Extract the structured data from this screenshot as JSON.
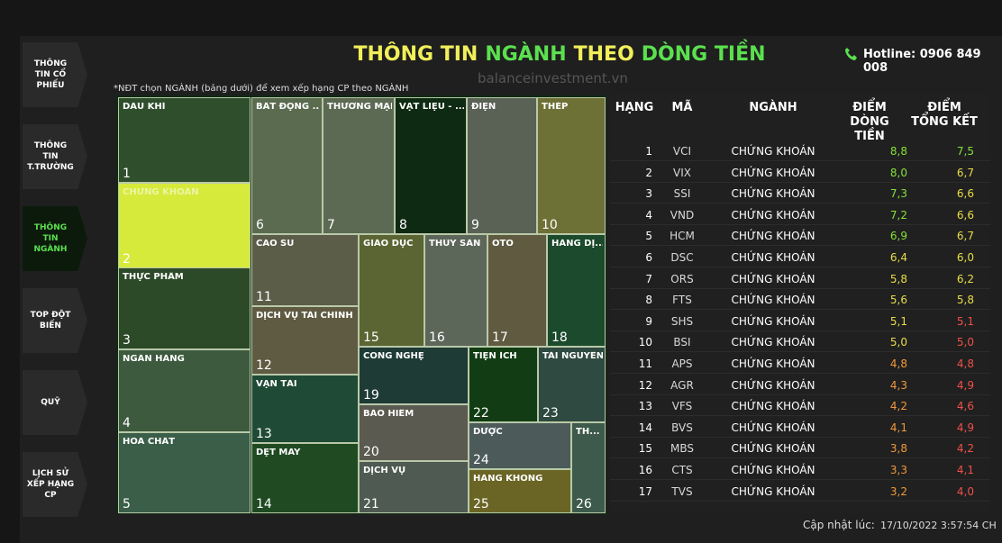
{
  "nav": [
    "THÔNG TIN CỔ PHIẾU",
    "THÔNG TIN T.TRƯỜNG",
    "THÔNG TIN NGÀNH",
    "TOP ĐỘT BIẾN",
    "QUỸ",
    "LỊCH SỬ XẾP HẠNG CP"
  ],
  "header": {
    "title_parts": [
      "THÔNG TIN",
      "NGÀNH",
      "THEO",
      "DÒNG TIỀN"
    ],
    "watermark": "balanceinvestment.vn",
    "hotline": "Hotline: 0906 849 008"
  },
  "note": "*NĐT chọn NGÀNH (bảng dưới) để xem xếp hạng CP theo NGÀNH",
  "treemap": [
    {
      "label": "DẦU KHÍ",
      "rank": "1"
    },
    {
      "label": "CHỨNG KHOÁN",
      "rank": "2"
    },
    {
      "label": "THỰC PHẨM",
      "rank": "3"
    },
    {
      "label": "NGÂN HÀNG",
      "rank": "4"
    },
    {
      "label": "HÓA CHẤT",
      "rank": "5"
    },
    {
      "label": "BẤT ĐỘNG ...",
      "rank": "6"
    },
    {
      "label": "THƯƠNG MẠI",
      "rank": "7"
    },
    {
      "label": "VẬT LIỆU - ...",
      "rank": "8"
    },
    {
      "label": "ĐIỆN",
      "rank": "9"
    },
    {
      "label": "THÉP",
      "rank": "10"
    },
    {
      "label": "CAO SU",
      "rank": "11"
    },
    {
      "label": "DỊCH VỤ TÀI CHÍNH",
      "rank": "12"
    },
    {
      "label": "VẬN TẢI",
      "rank": "13"
    },
    {
      "label": "DỆT MAY",
      "rank": "14"
    },
    {
      "label": "GIÁO DỤC",
      "rank": "15"
    },
    {
      "label": "THỦY SẢN",
      "rank": "16"
    },
    {
      "label": "ÔTÔ",
      "rank": "17"
    },
    {
      "label": "HÀNG DỊ...",
      "rank": "18"
    },
    {
      "label": "CÔNG NGHỆ",
      "rank": "19"
    },
    {
      "label": "BẢO HIỂM",
      "rank": "20"
    },
    {
      "label": "DỊCH VỤ",
      "rank": "21"
    },
    {
      "label": "TIỆN ÍCH",
      "rank": "22"
    },
    {
      "label": "TÀI NGUYÊN",
      "rank": "23"
    },
    {
      "label": "DƯỢC",
      "rank": "24"
    },
    {
      "label": "HÀNG KHÔNG",
      "rank": "25"
    },
    {
      "label": "TH...",
      "rank": "26"
    }
  ],
  "table": {
    "headers": [
      "HẠNG",
      "MÃ",
      "NGÀNH",
      "ĐIỂM DÒNG TIỀN",
      "ĐIỂM TỔNG KẾT"
    ],
    "rows": [
      [
        "1",
        "VCI",
        "CHỨNG KHOÁN",
        "8,8",
        "7,5"
      ],
      [
        "2",
        "VIX",
        "CHỨNG KHOÁN",
        "8,0",
        "6,7"
      ],
      [
        "3",
        "SSI",
        "CHỨNG KHOÁN",
        "7,3",
        "6,6"
      ],
      [
        "4",
        "VND",
        "CHỨNG KHOÁN",
        "7,2",
        "6,6"
      ],
      [
        "5",
        "HCM",
        "CHỨNG KHOÁN",
        "6,9",
        "6,7"
      ],
      [
        "6",
        "DSC",
        "CHỨNG KHOÁN",
        "6,4",
        "6,0"
      ],
      [
        "7",
        "ORS",
        "CHỨNG KHOÁN",
        "5,8",
        "6,2"
      ],
      [
        "8",
        "FTS",
        "CHỨNG KHOÁN",
        "5,6",
        "5,8"
      ],
      [
        "9",
        "SHS",
        "CHỨNG KHOÁN",
        "5,1",
        "5,1"
      ],
      [
        "10",
        "BSI",
        "CHỨNG KHOÁN",
        "5,0",
        "5,0"
      ],
      [
        "11",
        "APS",
        "CHỨNG KHOÁN",
        "4,8",
        "4,8"
      ],
      [
        "12",
        "AGR",
        "CHỨNG KHOÁN",
        "4,3",
        "4,9"
      ],
      [
        "13",
        "VFS",
        "CHỨNG KHOÁN",
        "4,2",
        "4,6"
      ],
      [
        "14",
        "BVS",
        "CHỨNG KHOÁN",
        "4,1",
        "4,9"
      ],
      [
        "15",
        "MBS",
        "CHỨNG KHOÁN",
        "3,8",
        "4,2"
      ],
      [
        "16",
        "CTS",
        "CHỨNG KHOÁN",
        "3,3",
        "4,1"
      ],
      [
        "17",
        "TVS",
        "CHỨNG KHOÁN",
        "3,2",
        "4,0"
      ]
    ]
  },
  "footer": {
    "label": "Cập nhật lúc:",
    "timestamp": "17/10/2022 3:57:54 CH"
  }
}
